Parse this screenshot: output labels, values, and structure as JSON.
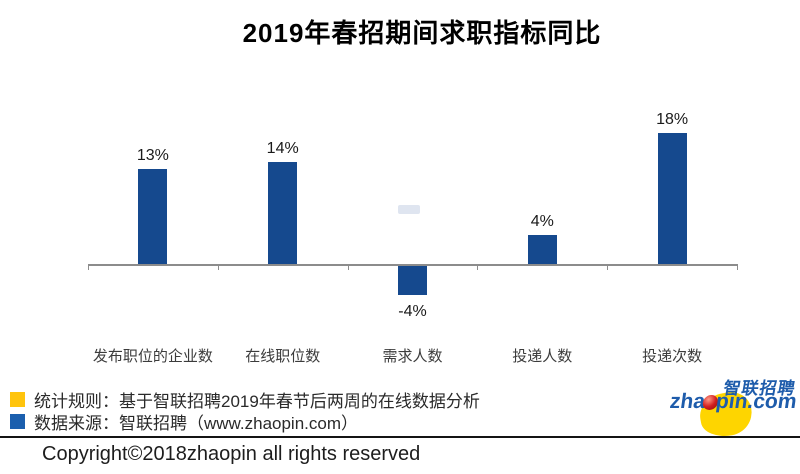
{
  "title": "2019年春招期间求职指标同比",
  "chart_data": {
    "type": "bar",
    "title": "2019年春招期间求职指标同比",
    "categories": [
      "发布职位的企业数",
      "在线职位数",
      "需求人数",
      "投递人数",
      "投递次数"
    ],
    "values": [
      13,
      14,
      -4,
      4,
      18
    ],
    "data_labels": [
      "13%",
      "14%",
      "-4%",
      "4%",
      "18%"
    ],
    "xlabel": "",
    "ylabel": "",
    "ylim": [
      -6,
      20
    ],
    "grid": false,
    "legend_position": "none",
    "bar_color": "#15498e",
    "axis_color": "#8c8c8c"
  },
  "notes": [
    {
      "swatch_color": "#ffc40d",
      "text": "统计规则：基于智联招聘2019年春节后两周的在线数据分析"
    },
    {
      "swatch_color": "#1b5fae",
      "text": "数据来源：智联招聘（www.zhaopin.com）"
    }
  ],
  "logo": {
    "cn_text": "智联招聘",
    "en_text_left": "zha",
    "en_text_right": "pin.com",
    "blue": "#1e5cab",
    "yellow": "#fed500",
    "red": "#c41212"
  },
  "copyright": "Copyright©2018zhaopin all rights reserved"
}
